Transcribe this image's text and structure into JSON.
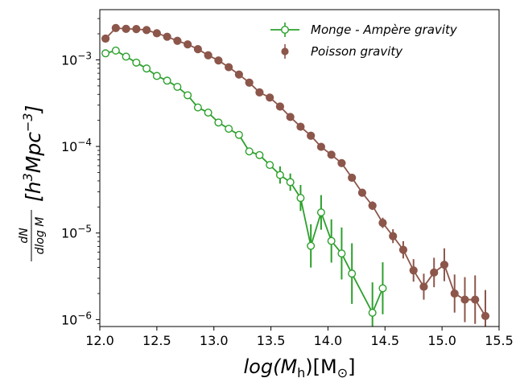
{
  "chart_data": {
    "type": "scatter",
    "xlabel": "log(M_h)[M_⊙]",
    "ylabel": "dN/dlog M [h^3 Mpc^-3]",
    "xlim": [
      12.0,
      15.5
    ],
    "ylim_log10": [
      -6.08,
      -2.42
    ],
    "y_scale": "log",
    "x_ticks": [
      "12.0",
      "12.5",
      "13.0",
      "13.5",
      "14.0",
      "14.5",
      "15.0",
      "15.5"
    ],
    "x_tick_values": [
      12.0,
      12.5,
      13.0,
      13.5,
      14.0,
      14.5,
      15.0,
      15.5
    ],
    "y_tick_exponents": [
      -3,
      -4,
      -5,
      -6
    ],
    "legend_position": "top-right",
    "series": [
      {
        "name": "Monge - Ampère gravity",
        "color": "#2ca02c",
        "marker": "open-circle",
        "x": [
          12.05,
          12.14,
          12.23,
          12.32,
          12.41,
          12.5,
          12.59,
          12.68,
          12.77,
          12.86,
          12.95,
          13.04,
          13.13,
          13.22,
          13.31,
          13.4,
          13.49,
          13.58,
          13.67,
          13.76,
          13.85,
          13.94,
          14.03,
          14.12,
          14.21,
          14.39,
          14.48
        ],
        "y": [
          0.00119,
          0.00128,
          0.00109,
          0.00093,
          0.000795,
          0.000652,
          0.000575,
          0.000488,
          0.00039,
          0.000282,
          0.000246,
          0.000189,
          0.00016,
          0.000136,
          8.77e-05,
          7.95e-05,
          6.11e-05,
          4.68e-05,
          3.87e-05,
          2.54e-05,
          7.1e-06,
          1.73e-05,
          8.1e-06,
          5.8e-06,
          3.4e-06,
          1.2e-06,
          2.3e-06
        ],
        "y_err": [
          0,
          0,
          0,
          0,
          0,
          0,
          0,
          0,
          0,
          0,
          0,
          0,
          0,
          0,
          0,
          0,
          0,
          0.1,
          0.1,
          0.15,
          0.25,
          0.2,
          0.25,
          0.3,
          0.35,
          0.35,
          0.3
        ]
      },
      {
        "name": "Poisson gravity",
        "color": "#8c564b",
        "marker": "filled-circle",
        "x": [
          12.05,
          12.14,
          12.23,
          12.32,
          12.41,
          12.5,
          12.59,
          12.68,
          12.77,
          12.86,
          12.95,
          13.04,
          13.13,
          13.22,
          13.31,
          13.4,
          13.49,
          13.58,
          13.67,
          13.76,
          13.85,
          13.94,
          14.03,
          14.12,
          14.21,
          14.3,
          14.39,
          14.48,
          14.57,
          14.66,
          14.75,
          14.84,
          14.93,
          15.02,
          15.11,
          15.2,
          15.29,
          15.38
        ],
        "y": [
          0.00176,
          0.00233,
          0.00228,
          0.00227,
          0.00221,
          0.00203,
          0.00185,
          0.00166,
          0.00151,
          0.00133,
          0.00113,
          0.000984,
          0.000823,
          0.000677,
          0.000546,
          0.000421,
          0.000367,
          0.000289,
          0.000219,
          0.000169,
          0.000133,
          9.9e-05,
          8.02e-05,
          6.42e-05,
          4.35e-05,
          2.92e-05,
          2.07e-05,
          1.31e-05,
          9.2e-06,
          6.4e-06,
          3.7e-06,
          2.4e-06,
          3.5e-06,
          4.3e-06,
          2e-06,
          1.7e-06,
          1.7e-06,
          1.1e-06
        ],
        "y_err": [
          0,
          0,
          0,
          0,
          0,
          0,
          0,
          0,
          0,
          0,
          0,
          0,
          0,
          0,
          0,
          0,
          0,
          0,
          0,
          0,
          0,
          0,
          0,
          0,
          0,
          0,
          0.05,
          0.06,
          0.08,
          0.1,
          0.13,
          0.15,
          0.17,
          0.19,
          0.22,
          0.26,
          0.28,
          0.3
        ]
      }
    ]
  }
}
